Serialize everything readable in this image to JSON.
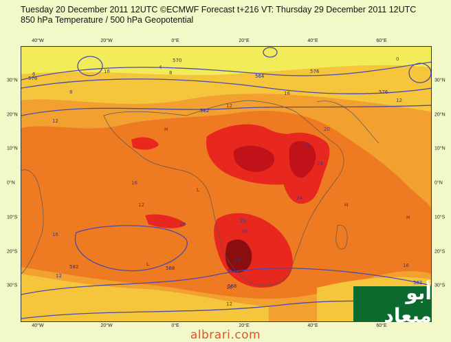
{
  "header": {
    "title_line1": "Tuesday 20 December 2011 12UTC ©ECMWF Forecast t+216 VT: Thursday 29 December 2011 12UTC",
    "title_line2": "850 hPa Temperature / 500 hPa Geopotential"
  },
  "axes": {
    "longitude_ticks": [
      "40°W",
      "20°W",
      "0°E",
      "20°E",
      "40°E",
      "60°E"
    ],
    "latitude_ticks": [
      "30°N",
      "20°N",
      "10°N",
      "0°N",
      "10°S",
      "20°S",
      "30°S"
    ]
  },
  "contour_labels": {
    "geopotential": [
      "576",
      "570",
      "564",
      "576",
      "582",
      "576",
      "582",
      "588",
      "576",
      "582",
      "588"
    ],
    "temperature": [
      "6",
      "8",
      "12",
      "12",
      "16",
      "16",
      "12",
      "20",
      "24",
      "24",
      "28",
      "24",
      "20",
      "28",
      "12",
      "16",
      "12",
      "16",
      "20",
      "16",
      "4",
      "0",
      "8",
      "12",
      "16"
    ],
    "pressure_markers": [
      "H",
      "L",
      "H",
      "L",
      "H"
    ]
  },
  "colors": {
    "cold_yellow": "#f2ec5a",
    "mild_yellow": "#f5c53c",
    "warm_orange": "#f2a030",
    "orange": "#ee7a22",
    "hot_red": "#e8281e",
    "very_hot": "#c01218",
    "extreme": "#8a0e10",
    "contour_line": "#4a4aaa"
  },
  "watermark": {
    "text": "أبو ميعاد"
  },
  "footer": {
    "url": "albrari.com"
  }
}
